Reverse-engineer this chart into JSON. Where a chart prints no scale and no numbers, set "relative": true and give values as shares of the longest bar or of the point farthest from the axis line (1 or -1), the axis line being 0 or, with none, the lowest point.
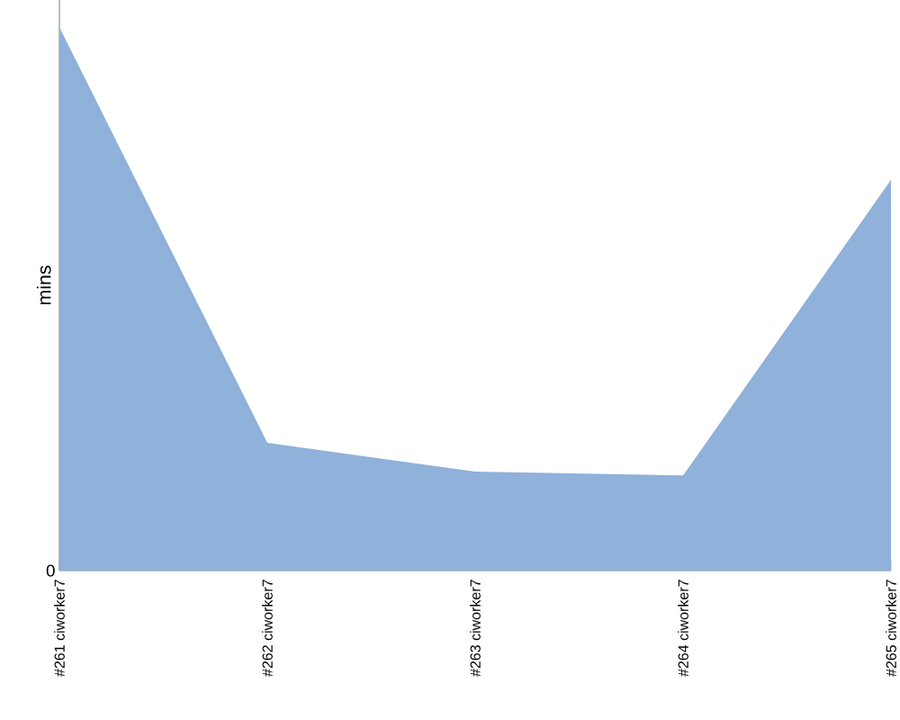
{
  "chart_data": {
    "type": "area",
    "ylabel": "mins",
    "relative": true,
    "annotations": [
      {
        "text": "0",
        "y": 0
      }
    ],
    "color": "#8fb1da",
    "categories": [
      "#261 ciworker7",
      "#262 ciworker7",
      "#263 ciworker7",
      "#264 ciworker7",
      "#265 ciworker7"
    ],
    "values": [
      1,
      0.235,
      0.182,
      0.175,
      0.719
    ]
  }
}
